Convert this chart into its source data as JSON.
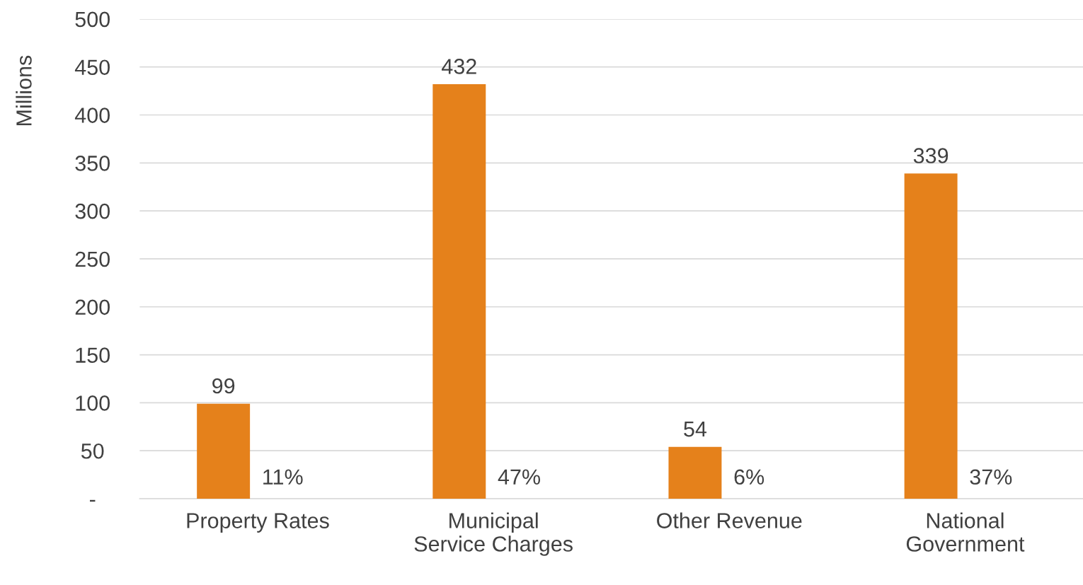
{
  "chart_data": {
    "type": "bar",
    "ylabel": "Millions",
    "categories": [
      "Property Rates",
      "Municipal\nService Charges",
      "Other Revenue",
      "National\nGovernment"
    ],
    "values": [
      99,
      432,
      54,
      339
    ],
    "color": "#e5811b",
    "data_labels": true,
    "ylim": [
      0,
      500
    ],
    "yticks": [
      {
        "value": 0,
        "label": "-"
      },
      50,
      100,
      150,
      200,
      250,
      300,
      350,
      400,
      450,
      500
    ],
    "grid": "y",
    "annotations": [
      "11%",
      "47%",
      "6%",
      "37%"
    ]
  }
}
